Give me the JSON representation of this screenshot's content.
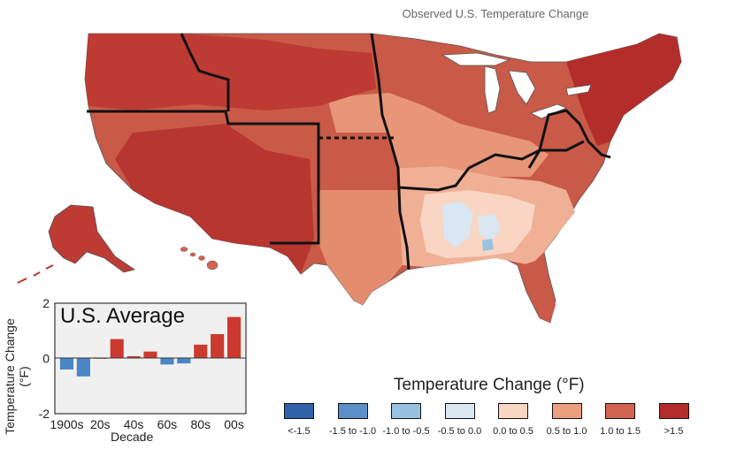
{
  "map": {
    "title": "Observed U.S. Temperature Change"
  },
  "legend": {
    "title": "Temperature Change (°F)",
    "bins": [
      {
        "label": "<-1.5",
        "color": "#2f62a8"
      },
      {
        "label": "-1.5 to -1.0",
        "color": "#5b8fc7"
      },
      {
        "label": "-1.0 to -0.5",
        "color": "#99c2e2"
      },
      {
        "label": "-0.5 to 0.0",
        "color": "#d9e7f3"
      },
      {
        "label": "0.0 to 0.5",
        "color": "#f8d6c3"
      },
      {
        "label": "0.5 to 1.0",
        "color": "#ec9f7f"
      },
      {
        "label": "1.0 to 1.5",
        "color": "#d26550"
      },
      {
        "label": ">1.5",
        "color": "#b32e2b"
      }
    ]
  },
  "chart_data": {
    "type": "bar",
    "title": "U.S. Average",
    "xlabel": "Decade",
    "ylabel": "Temperature Change (°F)",
    "ylim": [
      -2,
      2
    ],
    "yticks": [
      "2",
      "0",
      "-2"
    ],
    "xtick_labels": [
      "1900s",
      "20s",
      "40s",
      "60s",
      "80s",
      "00s"
    ],
    "categories": [
      "1900s",
      "1910s",
      "1920s",
      "1930s",
      "1940s",
      "1950s",
      "1960s",
      "1970s",
      "1980s",
      "1990s",
      "2000s"
    ],
    "values": [
      -0.4,
      -0.65,
      0.02,
      0.7,
      0.08,
      0.25,
      -0.22,
      -0.18,
      0.5,
      0.88,
      1.5
    ],
    "colors": {
      "positive": "#cc3a2f",
      "negative": "#4a86c5"
    },
    "grid": false
  }
}
